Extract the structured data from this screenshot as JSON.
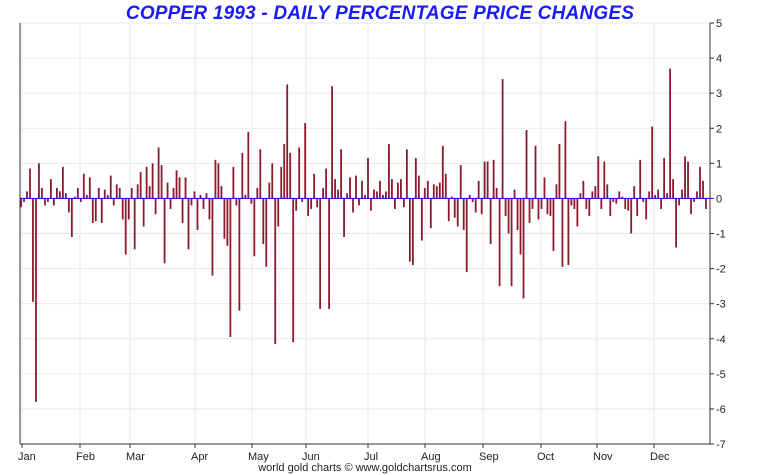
{
  "chart_data": {
    "type": "bar",
    "title": "COPPER 1993 - DAILY PERCENTAGE PRICE CHANGES",
    "xlabel": "",
    "ylabel": "",
    "ylim": [
      -7,
      5
    ],
    "y_ticks": [
      5,
      4,
      3,
      2,
      1,
      0,
      -1,
      -2,
      -3,
      -4,
      -5,
      -6,
      -7
    ],
    "x_tick_labels": [
      "Jan",
      "Feb",
      "Mar",
      "Apr",
      "May",
      "Jun",
      "Jul",
      "Aug",
      "Sep",
      "Oct",
      "Nov",
      "Dec"
    ],
    "grid": true,
    "colors": {
      "bar": "#8b1a2b",
      "zero_line": "#1a1aff",
      "title": "#1a1aff",
      "grid": "#e4eaf2"
    },
    "values": [
      -0.25,
      -0.1,
      0.2,
      0.85,
      -2.95,
      -5.8,
      1.0,
      0.3,
      -0.2,
      -0.1,
      0.55,
      -0.2,
      0.3,
      0.2,
      0.9,
      0.15,
      -0.4,
      -1.1,
      0.05,
      0.3,
      -0.1,
      0.7,
      0.1,
      0.6,
      -0.7,
      -0.65,
      0.3,
      -0.7,
      0.25,
      0.1,
      0.65,
      -0.2,
      0.4,
      0.3,
      -0.6,
      -1.6,
      -0.6,
      0.3,
      -1.45,
      0.4,
      0.75,
      -0.8,
      0.9,
      0.35,
      1.0,
      -0.45,
      1.45,
      0.95,
      -1.85,
      0.45,
      -0.3,
      0.3,
      0.8,
      0.6,
      -0.7,
      0.6,
      -1.45,
      -0.2,
      0.2,
      -0.9,
      0.1,
      -0.3,
      0.15,
      -0.6,
      -2.2,
      1.1,
      1.0,
      0.35,
      -1.15,
      -1.35,
      -3.95,
      0.9,
      -0.2,
      -3.2,
      1.3,
      0.1,
      1.9,
      -0.15,
      -1.65,
      0.3,
      1.4,
      -1.3,
      -1.95,
      0.45,
      1.0,
      -4.15,
      -0.8,
      0.9,
      1.55,
      3.25,
      1.3,
      -4.1,
      -0.35,
      1.45,
      -0.1,
      2.15,
      -0.5,
      -0.3,
      0.7,
      -0.25,
      -3.15,
      0.3,
      0.85,
      -3.15,
      3.2,
      0.55,
      0.25,
      1.4,
      -1.1,
      0.15,
      0.6,
      -0.4,
      0.65,
      -0.2,
      0.5,
      0.1,
      1.15,
      -0.35,
      0.25,
      0.2,
      0.5,
      0.1,
      0.2,
      1.55,
      0.55,
      -0.3,
      0.45,
      0.55,
      -0.25,
      1.4,
      -1.8,
      -1.9,
      1.15,
      0.65,
      -1.2,
      0.3,
      0.5,
      -0.85,
      0.4,
      0.35,
      0.45,
      1.5,
      0.7,
      -0.65,
      0.05,
      -0.55,
      -0.8,
      0.95,
      -0.9,
      -2.1,
      0.1,
      -0.1,
      -0.4,
      0.5,
      -0.45,
      1.05,
      1.05,
      -1.3,
      1.1,
      0.3,
      -2.5,
      3.4,
      -0.5,
      -1.0,
      -2.5,
      0.25,
      -0.9,
      -1.6,
      -2.85,
      1.95,
      -0.7,
      -0.3,
      1.5,
      -0.6,
      -0.3,
      0.6,
      -0.45,
      -0.5,
      -1.5,
      0.4,
      1.55,
      -1.95,
      2.2,
      -1.9,
      -0.2,
      -0.3,
      -0.8,
      0.15,
      0.5,
      -0.3,
      -0.5,
      0.2,
      0.35,
      1.2,
      -0.3,
      1.05,
      0.4,
      -0.5,
      -0.1,
      -0.15,
      0.2,
      0.05,
      -0.3,
      -0.35,
      -1.0,
      0.35,
      -0.5,
      1.1,
      -0.1,
      -0.6,
      0.2,
      2.05,
      0.1,
      0.25,
      -0.3,
      1.15,
      0.15,
      3.7,
      0.55,
      -1.4,
      -0.2,
      0.25,
      1.2,
      1.05,
      -0.45,
      -0.1,
      0.2,
      0.9,
      0.5,
      -0.3
    ]
  },
  "footer": "world gold charts © www.goldchartsrus.com"
}
